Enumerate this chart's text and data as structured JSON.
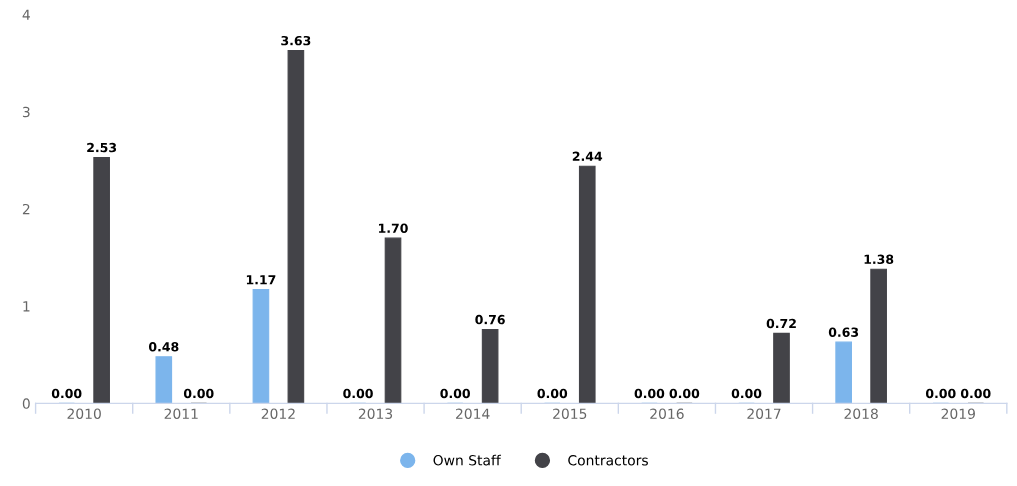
{
  "chart_data": {
    "type": "bar",
    "categories": [
      "2010",
      "2011",
      "2012",
      "2013",
      "2014",
      "2015",
      "2016",
      "2017",
      "2018",
      "2019"
    ],
    "series": [
      {
        "name": "Own Staff",
        "color": "#7cb5ec",
        "values": [
          0.0,
          0.48,
          1.17,
          0.0,
          0.0,
          0.0,
          0.0,
          0.0,
          0.63,
          0.0
        ],
        "value_labels": [
          "0.00",
          "0.48",
          "1.17",
          "0.00",
          "0.00",
          "0.00",
          "0.00",
          "0.00",
          "0.63",
          "0.00"
        ]
      },
      {
        "name": "Contractors",
        "color": "#434348",
        "values": [
          2.53,
          0.0,
          3.63,
          1.7,
          0.76,
          2.44,
          0.0,
          0.72,
          1.38,
          0.0
        ],
        "value_labels": [
          "2.53",
          "0.00",
          "3.63",
          "1.70",
          "0.76",
          "2.44",
          "0.00",
          "0.72",
          "1.38",
          "0.00"
        ]
      }
    ],
    "ylim": [
      0,
      4
    ],
    "yticks": [
      0,
      1,
      2,
      3,
      4
    ],
    "grid": false,
    "legend": "bottom"
  }
}
